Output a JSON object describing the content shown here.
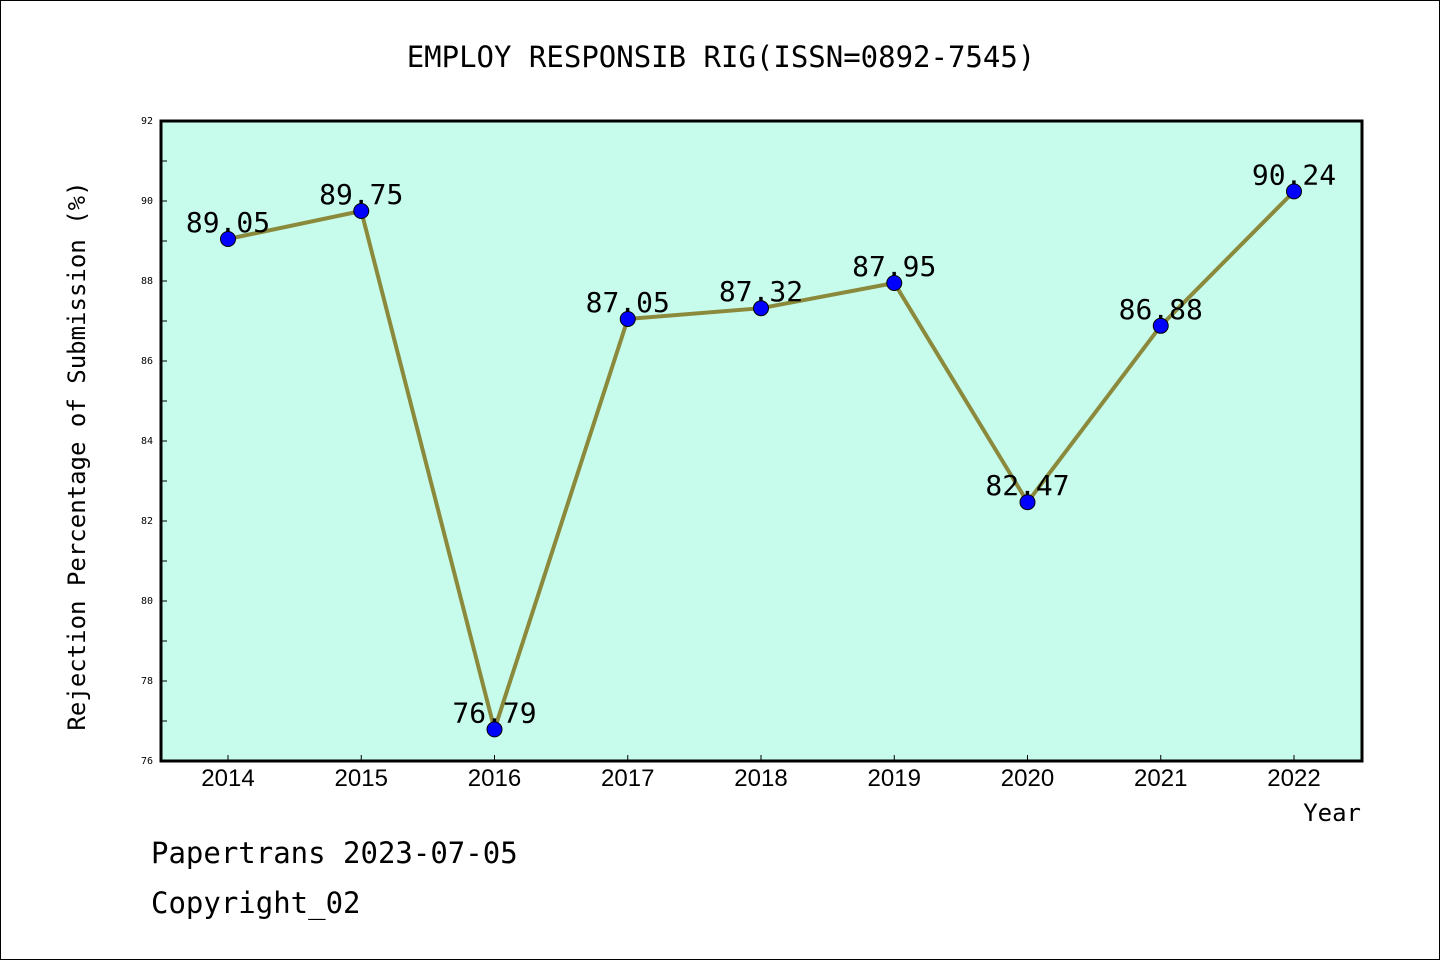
{
  "chart_data": {
    "type": "line",
    "title": "EMPLOY RESPONSIB RIG(ISSN=0892-7545)",
    "xlabel": "Year",
    "ylabel": "Rejection Percentage of Submission (%)",
    "categories": [
      "2014",
      "2015",
      "2016",
      "2017",
      "2018",
      "2019",
      "2020",
      "2021",
      "2022"
    ],
    "series": [
      {
        "values": [
          89.05,
          89.75,
          76.79,
          87.05,
          87.32,
          87.95,
          82.47,
          86.88,
          90.24
        ]
      }
    ],
    "data_labels": [
      "89.05",
      "89.75",
      "76.79",
      "87.05",
      "87.32",
      "87.95",
      "82.47",
      "86.88",
      "90.24"
    ],
    "ylim": [
      76,
      92
    ],
    "yticks": [
      "76",
      "78",
      "80",
      "82",
      "84",
      "86",
      "88",
      "90",
      "92"
    ],
    "grid": false,
    "legend": "none",
    "colors": {
      "plot_background": "#c7fcec",
      "line": "#8b8a3c",
      "marker": "#0000ff"
    }
  },
  "footer": {
    "line1": "Papertrans 2023-07-05",
    "line2": "Copyright_02"
  }
}
